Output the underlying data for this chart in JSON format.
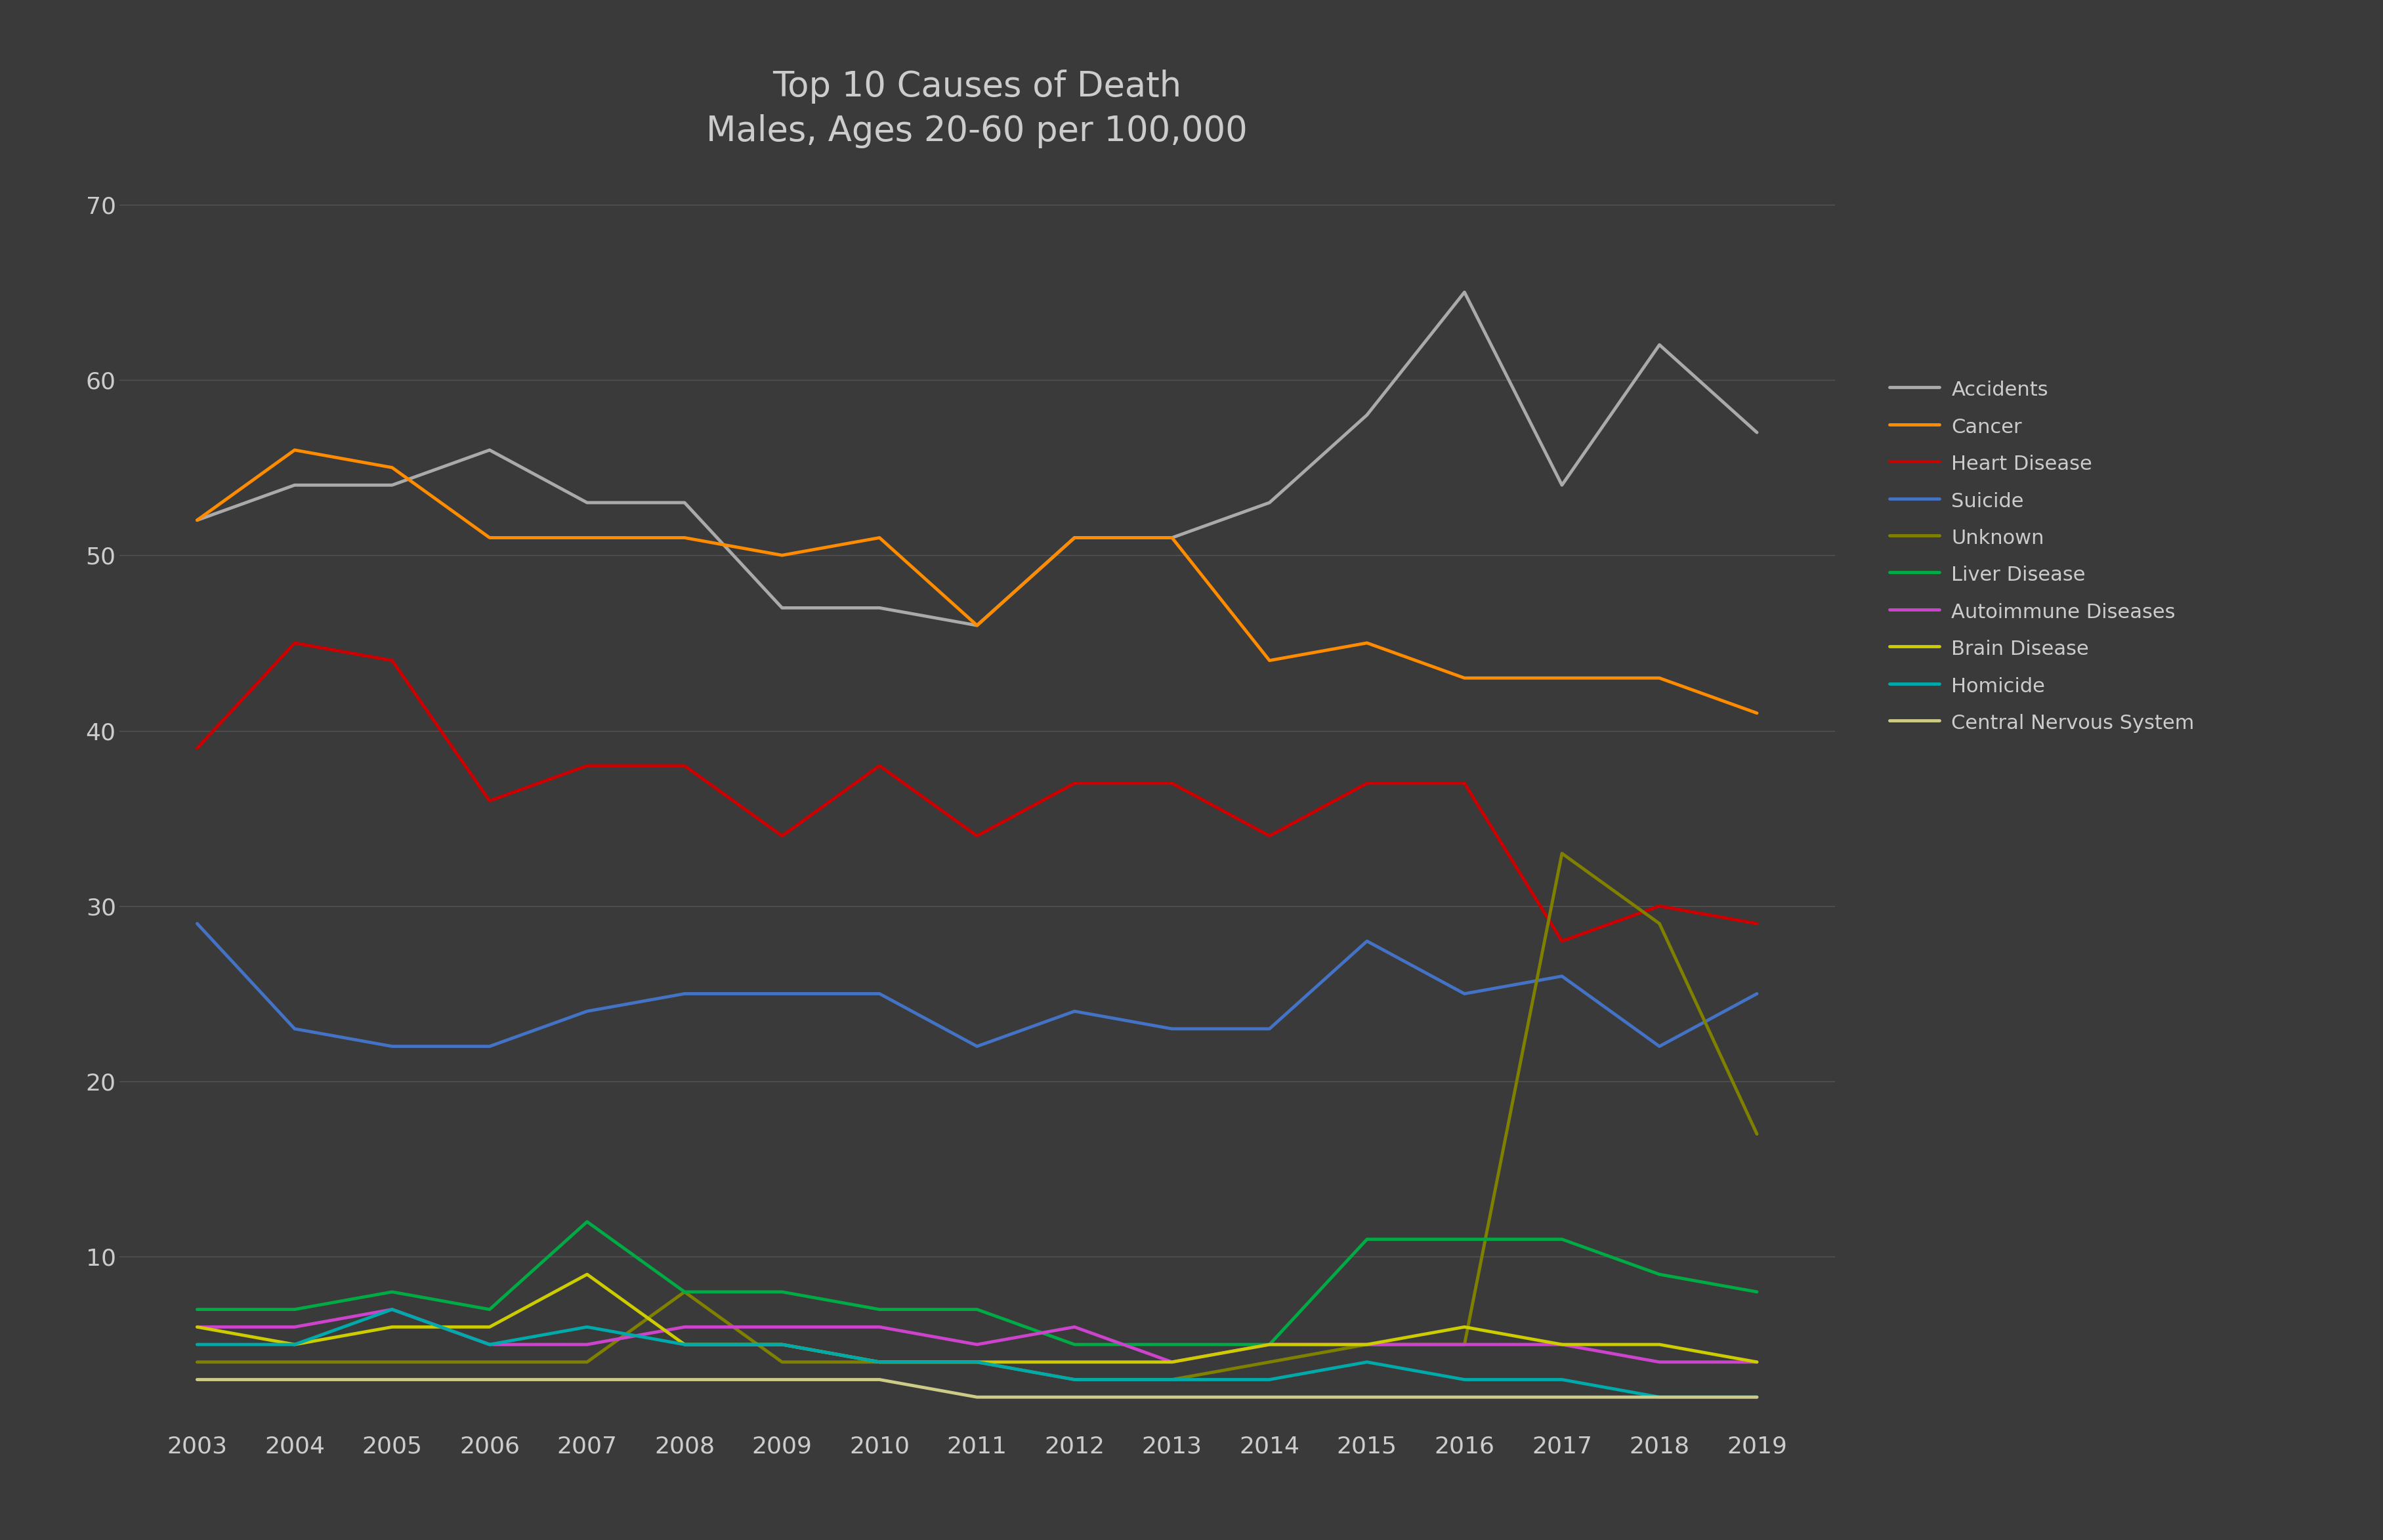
{
  "title": "Top 10 Causes of Death\nMales, Ages 20-60 per 100,000",
  "years": [
    2003,
    2004,
    2005,
    2006,
    2007,
    2008,
    2009,
    2010,
    2011,
    2012,
    2013,
    2014,
    2015,
    2016,
    2017,
    2018,
    2019
  ],
  "series": {
    "Accidents": {
      "color": "#aaaaaa",
      "linewidth": 3.5,
      "values": [
        52,
        54,
        54,
        56,
        53,
        53,
        47,
        47,
        46,
        51,
        51,
        53,
        58,
        65,
        54,
        62,
        57
      ]
    },
    "Cancer": {
      "color": "#FF8C00",
      "linewidth": 3.5,
      "values": [
        52,
        56,
        55,
        51,
        51,
        51,
        50,
        51,
        46,
        51,
        51,
        44,
        45,
        43,
        43,
        43,
        41
      ]
    },
    "Heart Disease": {
      "color": "#CC0000",
      "linewidth": 3.5,
      "values": [
        39,
        45,
        44,
        36,
        38,
        38,
        34,
        38,
        34,
        37,
        37,
        34,
        37,
        37,
        28,
        30,
        29
      ]
    },
    "Suicide": {
      "color": "#4472C4",
      "linewidth": 3.5,
      "values": [
        29,
        23,
        22,
        22,
        24,
        25,
        25,
        25,
        22,
        24,
        23,
        23,
        28,
        25,
        26,
        22,
        25
      ]
    },
    "Unknown": {
      "color": "#808000",
      "linewidth": 3.5,
      "values": [
        4,
        4,
        4,
        4,
        4,
        8,
        4,
        4,
        4,
        3,
        3,
        4,
        5,
        5,
        33,
        29,
        17
      ]
    },
    "Liver Disease": {
      "color": "#00AA44",
      "linewidth": 3.5,
      "values": [
        7,
        7,
        8,
        7,
        12,
        8,
        8,
        7,
        7,
        5,
        5,
        5,
        11,
        11,
        11,
        9,
        8
      ]
    },
    "Autoimmune Diseases": {
      "color": "#CC44CC",
      "linewidth": 3.5,
      "values": [
        6,
        6,
        7,
        5,
        5,
        6,
        6,
        6,
        5,
        6,
        4,
        5,
        5,
        5,
        5,
        4,
        4
      ]
    },
    "Brain Disease": {
      "color": "#CCCC00",
      "linewidth": 3.5,
      "values": [
        6,
        5,
        6,
        6,
        9,
        5,
        5,
        4,
        4,
        4,
        4,
        5,
        5,
        6,
        5,
        5,
        4
      ]
    },
    "Homicide": {
      "color": "#00AAAA",
      "linewidth": 3.5,
      "values": [
        5,
        5,
        7,
        5,
        6,
        5,
        5,
        4,
        4,
        3,
        3,
        3,
        4,
        3,
        3,
        2,
        2
      ]
    },
    "Central Nervous System": {
      "color": "#CCCC88",
      "linewidth": 3.5,
      "values": [
        3,
        3,
        3,
        3,
        3,
        3,
        3,
        3,
        2,
        2,
        2,
        2,
        2,
        2,
        2,
        2,
        2
      ]
    }
  },
  "ylim": [
    0,
    72
  ],
  "yticks": [
    10,
    20,
    30,
    40,
    50,
    60,
    70
  ],
  "background_color": "#3a3a3a",
  "plot_bg_color": "#3d3d3d",
  "grid_color": "#555555",
  "text_color": "#cccccc",
  "title_fontsize": 38,
  "tick_fontsize": 26,
  "legend_fontsize": 22
}
